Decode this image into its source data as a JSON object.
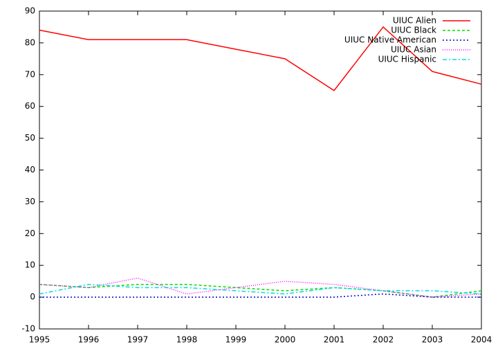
{
  "chart_data": {
    "type": "line",
    "x": [
      1995,
      1996,
      1997,
      1998,
      1999,
      2000,
      2001,
      2002,
      2003,
      2004
    ],
    "xlim": [
      1995,
      2004
    ],
    "xticks": [
      1995,
      1996,
      1997,
      1998,
      1999,
      2000,
      2001,
      2002,
      2003,
      2004
    ],
    "ylim": [
      -10,
      90
    ],
    "yticks": [
      -10,
      0,
      10,
      20,
      30,
      40,
      50,
      60,
      70,
      80,
      90
    ],
    "legend": "top-right",
    "series": [
      {
        "name": "UIUC Alien",
        "color": "#ff0000",
        "values": [
          84,
          81,
          81,
          81,
          78,
          75,
          65,
          85,
          71,
          67
        ]
      },
      {
        "name": "UIUC Black",
        "color": "#00dd00",
        "values": [
          4,
          3,
          4,
          4,
          3,
          2,
          3,
          2,
          0,
          2
        ]
      },
      {
        "name": "UIUC Native American",
        "color": "#0000cc",
        "values": [
          0,
          0,
          0,
          0,
          0,
          0,
          0,
          1,
          0,
          0
        ]
      },
      {
        "name": "UIUC Asian",
        "color": "#ff00ff",
        "values": [
          4,
          3,
          6,
          1,
          3,
          5,
          4,
          2,
          0,
          1
        ]
      },
      {
        "name": "UIUC Hispanic",
        "color": "#00dddd",
        "values": [
          1,
          4,
          3,
          3,
          2,
          1,
          3,
          2,
          2,
          1
        ]
      }
    ]
  }
}
